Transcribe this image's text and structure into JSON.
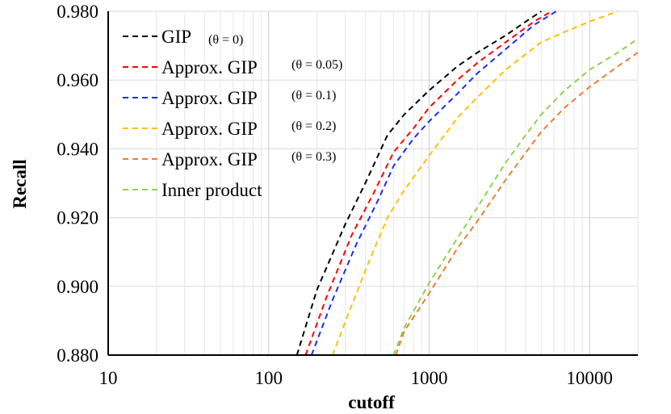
{
  "chart_data": {
    "type": "line",
    "title": "",
    "xlabel": "cutoff",
    "ylabel": "Recall",
    "xscale": "log",
    "xlim": [
      10,
      20000
    ],
    "ylim": [
      0.88,
      0.98
    ],
    "x_ticks": [
      10,
      100,
      1000,
      10000
    ],
    "x_tick_labels": [
      "10",
      "100",
      "1000",
      "10000"
    ],
    "y_ticks": [
      0.88,
      0.9,
      0.92,
      0.94,
      0.96,
      0.98
    ],
    "y_tick_labels": [
      "0.880",
      "0.900",
      "0.920",
      "0.940",
      "0.960",
      "0.980"
    ],
    "grid": true,
    "legend_position": "top-left",
    "series": [
      {
        "name": "GIP",
        "theta": "(θ = 0)",
        "color": "#000000",
        "x": [
          150,
          200,
          300,
          400,
          550,
          700,
          1000,
          1500,
          2000,
          3000,
          4000,
          5000
        ],
        "y": [
          0.88,
          0.899,
          0.918,
          0.93,
          0.944,
          0.95,
          0.957,
          0.964,
          0.968,
          0.973,
          0.977,
          0.98
        ]
      },
      {
        "name": "Approx. GIP",
        "theta": "(θ = 0.05)",
        "color": "#ff0000",
        "x": [
          170,
          230,
          330,
          450,
          600,
          800,
          1000,
          1500,
          2000,
          3000,
          4500,
          5800
        ],
        "y": [
          0.88,
          0.897,
          0.915,
          0.927,
          0.939,
          0.946,
          0.952,
          0.96,
          0.965,
          0.971,
          0.977,
          0.98
        ]
      },
      {
        "name": "Approx. GIP",
        "theta": "(θ = 0.1)",
        "color": "#1c2ef0",
        "x": [
          185,
          250,
          350,
          480,
          600,
          800,
          1000,
          1500,
          2000,
          3000,
          4500,
          6200
        ],
        "y": [
          0.88,
          0.896,
          0.912,
          0.925,
          0.935,
          0.943,
          0.948,
          0.956,
          0.962,
          0.969,
          0.976,
          0.98
        ]
      },
      {
        "name": "Approx. GIP",
        "theta": "(θ = 0.2)",
        "color": "#ffc000",
        "x": [
          250,
          320,
          420,
          550,
          700,
          1000,
          1500,
          2000,
          3000,
          5000,
          7000,
          10000,
          15000
        ],
        "y": [
          0.88,
          0.893,
          0.907,
          0.92,
          0.928,
          0.938,
          0.949,
          0.955,
          0.963,
          0.971,
          0.974,
          0.977,
          0.98
        ]
      },
      {
        "name": "Approx. GIP",
        "theta": "(θ = 0.3)",
        "color": "#ed7d31",
        "x": [
          620,
          700,
          800,
          1000,
          1500,
          2000,
          3000,
          5000,
          7000,
          10000,
          15000,
          20000
        ],
        "y": [
          0.88,
          0.887,
          0.891,
          0.898,
          0.911,
          0.919,
          0.931,
          0.945,
          0.952,
          0.958,
          0.964,
          0.968
        ]
      },
      {
        "name": "Inner product",
        "theta": "",
        "color": "#92d050",
        "x": [
          600,
          700,
          850,
          1000,
          1500,
          2000,
          3000,
          4000,
          5000,
          7000,
          10000,
          15000,
          20000
        ],
        "y": [
          0.88,
          0.888,
          0.895,
          0.901,
          0.914,
          0.923,
          0.936,
          0.944,
          0.95,
          0.957,
          0.963,
          0.968,
          0.972
        ]
      }
    ]
  }
}
